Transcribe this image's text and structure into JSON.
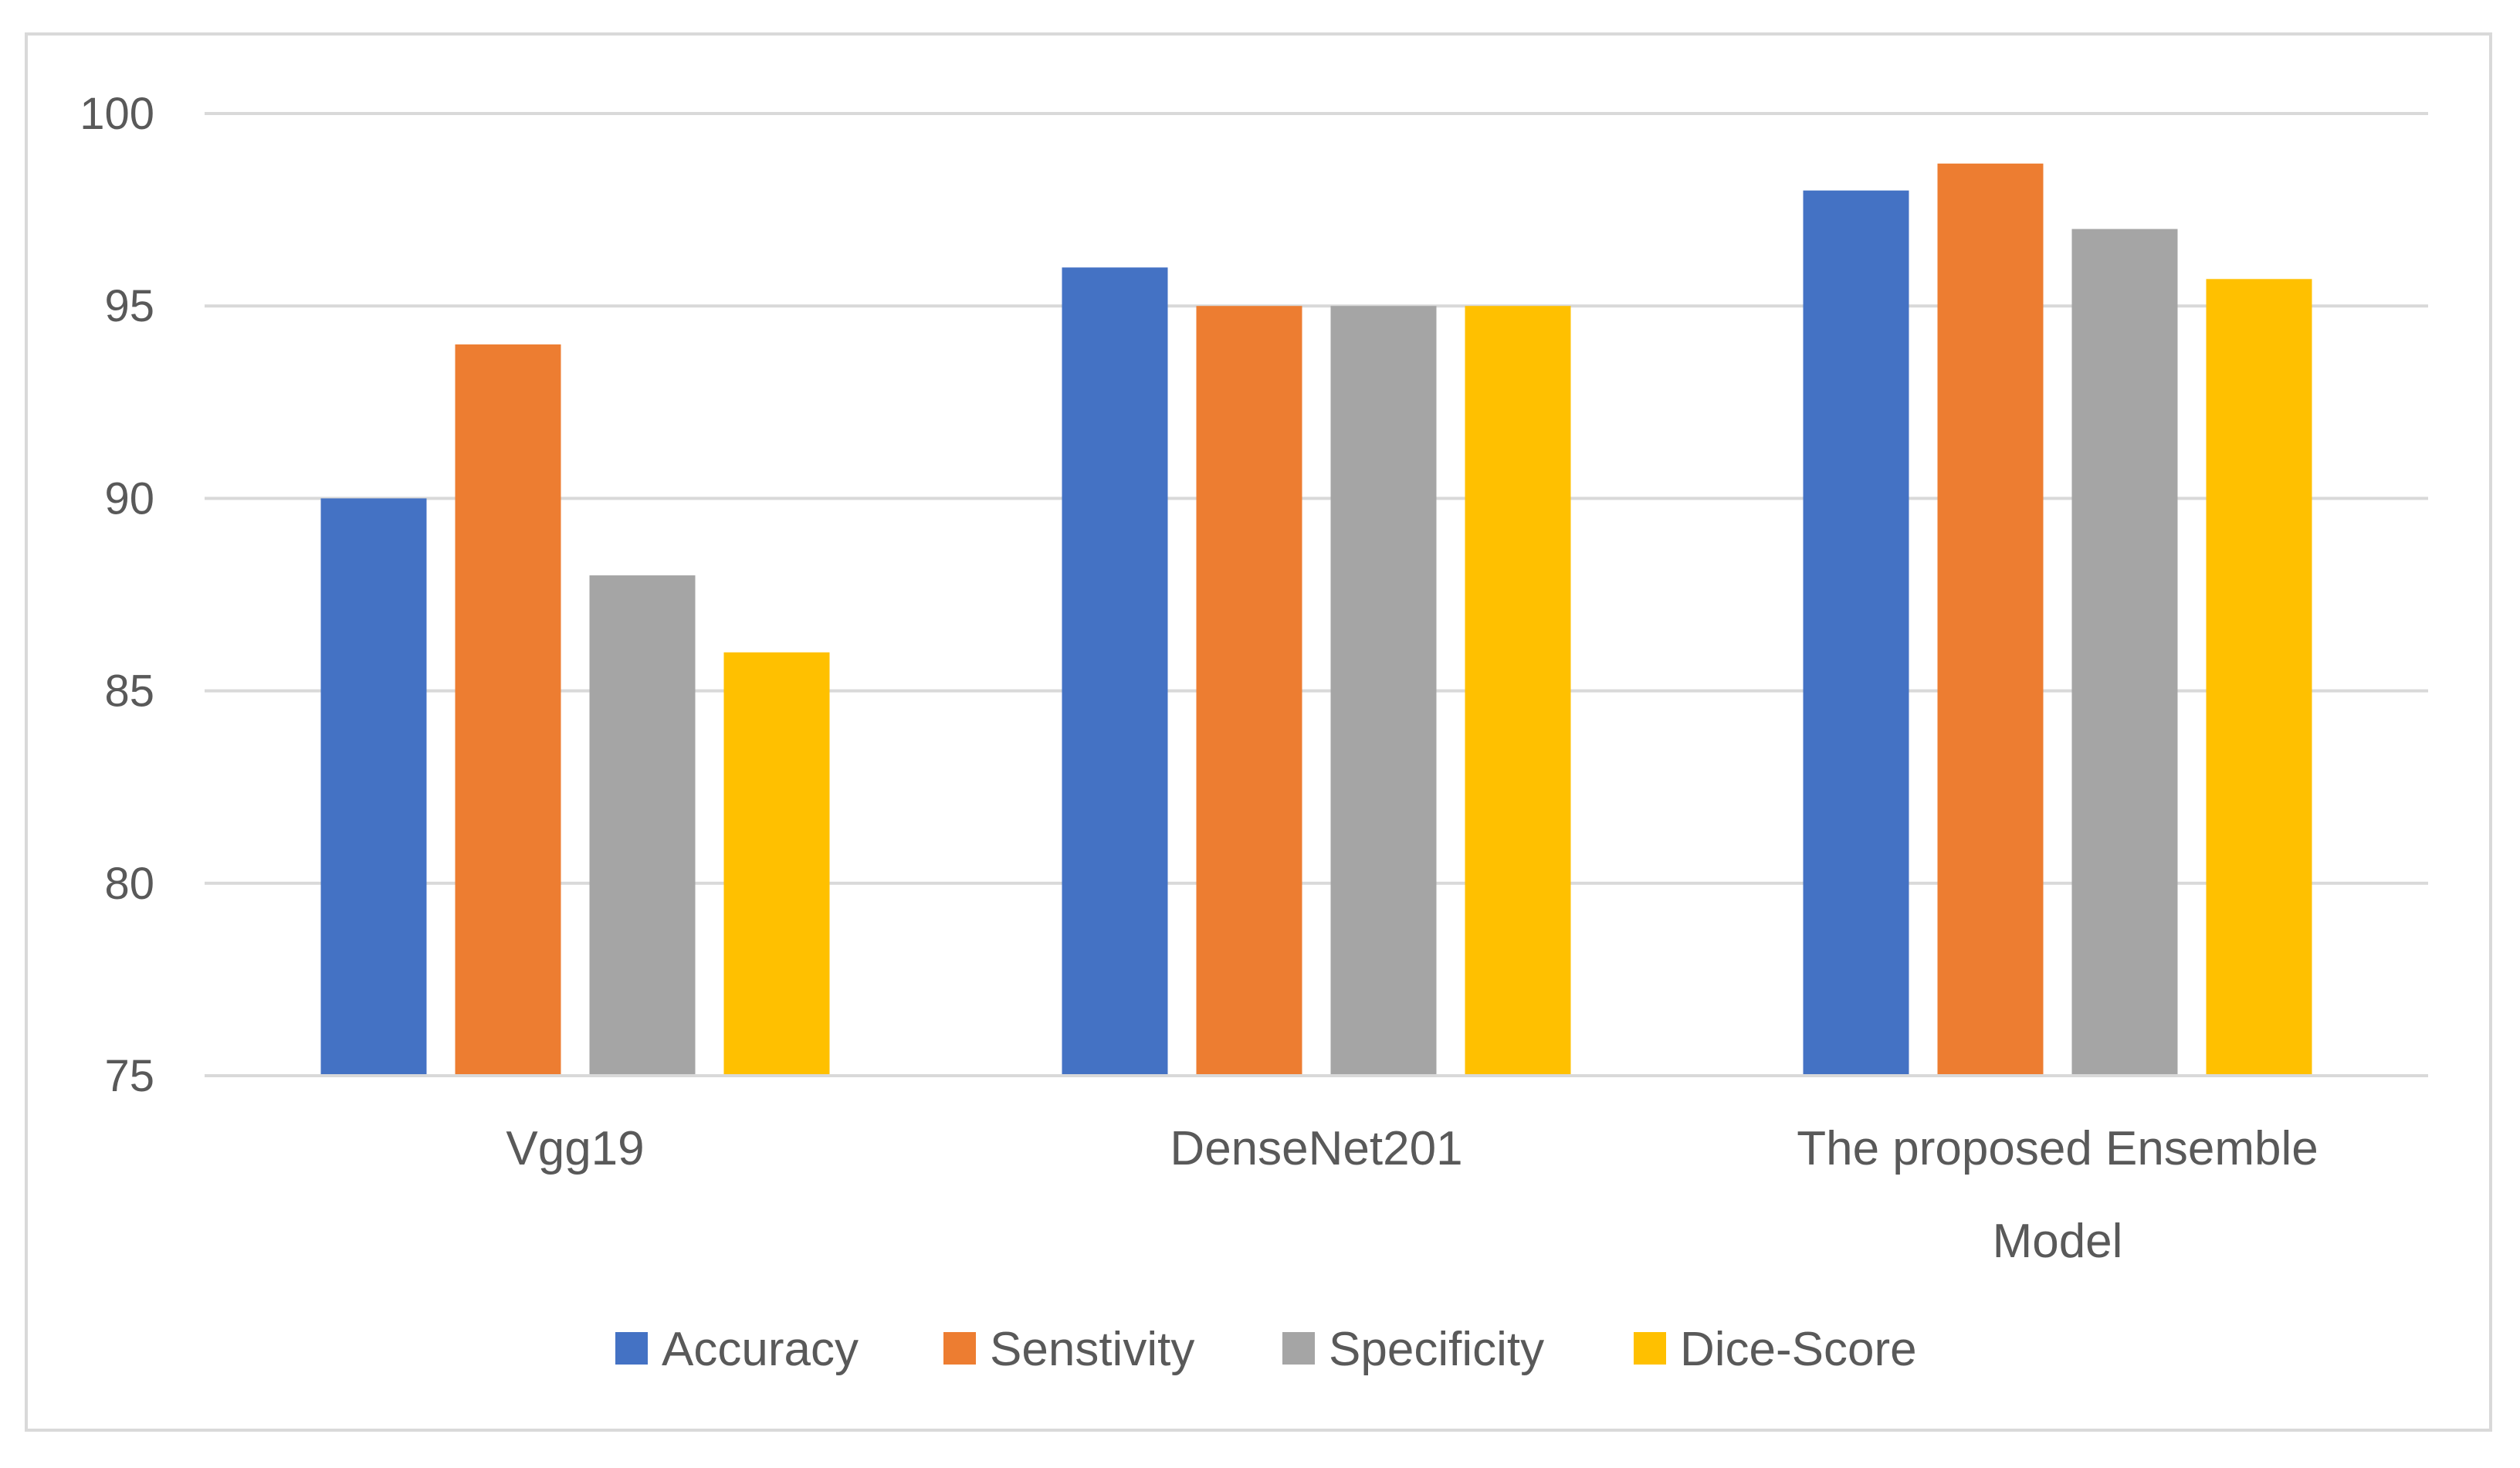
{
  "chart_data": {
    "type": "bar",
    "title": "",
    "xlabel": "",
    "ylabel": "",
    "ylim": [
      75,
      100
    ],
    "yticks": [
      75,
      80,
      85,
      90,
      95,
      100
    ],
    "grid": true,
    "legend_position": "bottom",
    "categories": [
      [
        "Vgg19"
      ],
      [
        "DenseNet201"
      ],
      [
        "The proposed Ensemble",
        "Model"
      ]
    ],
    "series": [
      {
        "name": "Accuracy",
        "color": "#4472c4",
        "values": [
          90,
          96,
          98
        ]
      },
      {
        "name": "Senstivity",
        "color": "#ed7d31",
        "values": [
          94,
          95,
          98.7
        ]
      },
      {
        "name": "Specificity",
        "color": "#a5a5a5",
        "values": [
          88,
          95,
          97
        ]
      },
      {
        "name": "Dice-Score",
        "color": "#ffc000",
        "values": [
          86,
          95,
          95.7
        ]
      }
    ]
  }
}
